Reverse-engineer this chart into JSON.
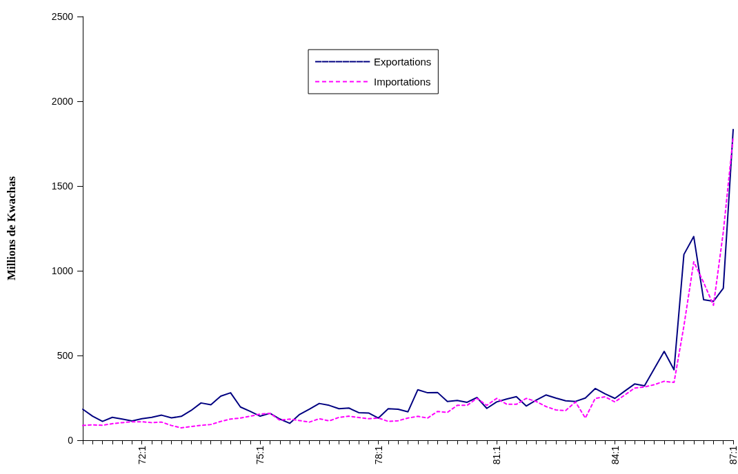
{
  "chart_data": {
    "type": "line",
    "ylabel": "Millions de Kwachas",
    "categories": [
      null,
      null,
      null,
      null,
      null,
      null,
      "72:1",
      null,
      null,
      null,
      null,
      null,
      null,
      null,
      null,
      null,
      null,
      null,
      "75:1",
      null,
      null,
      null,
      null,
      null,
      null,
      null,
      null,
      null,
      null,
      null,
      "78:1",
      null,
      null,
      null,
      null,
      null,
      null,
      null,
      null,
      null,
      null,
      null,
      "81:1",
      null,
      null,
      null,
      null,
      null,
      null,
      null,
      null,
      null,
      null,
      null,
      "84:1",
      null,
      null,
      null,
      null,
      null,
      null,
      null,
      null,
      null,
      null,
      null,
      "87:1"
    ],
    "series": [
      {
        "name": "Exportations",
        "color": "#000080",
        "line_style": "solid",
        "values": [
          183,
          142,
          111,
          135,
          125,
          114,
          127,
          135,
          148,
          132,
          141,
          176,
          220,
          209,
          260,
          280,
          196,
          170,
          142,
          159,
          125,
          100,
          152,
          183,
          217,
          206,
          186,
          190,
          163,
          161,
          131,
          186,
          183,
          168,
          298,
          280,
          282,
          229,
          235,
          224,
          252,
          188,
          226,
          243,
          257,
          202,
          236,
          267,
          249,
          233,
          229,
          249,
          305,
          274,
          247,
          290,
          332,
          321,
          423,
          524,
          416,
          1096,
          1202,
          829,
          820,
          897,
          1833
        ]
      },
      {
        "name": "Importations",
        "color": "#ff00ff",
        "line_style": "dashed",
        "values": [
          87,
          91,
          88,
          98,
          104,
          109,
          109,
          104,
          107,
          87,
          73,
          81,
          88,
          93,
          111,
          125,
          131,
          142,
          154,
          159,
          118,
          125,
          116,
          107,
          127,
          114,
          135,
          142,
          134,
          127,
          131,
          111,
          115,
          131,
          141,
          131,
          170,
          164,
          206,
          206,
          247,
          206,
          247,
          213,
          212,
          247,
          229,
          199,
          179,
          175,
          226,
          131,
          247,
          256,
          226,
          267,
          308,
          314,
          328,
          348,
          341,
          674,
          1053,
          931,
          796,
          1230,
          1790
        ]
      }
    ],
    "ylim": [
      0,
      2500
    ],
    "yticks": [
      0,
      500,
      1000,
      1500,
      2000,
      2500
    ],
    "grid": false,
    "legend": "top",
    "marker": "none"
  }
}
